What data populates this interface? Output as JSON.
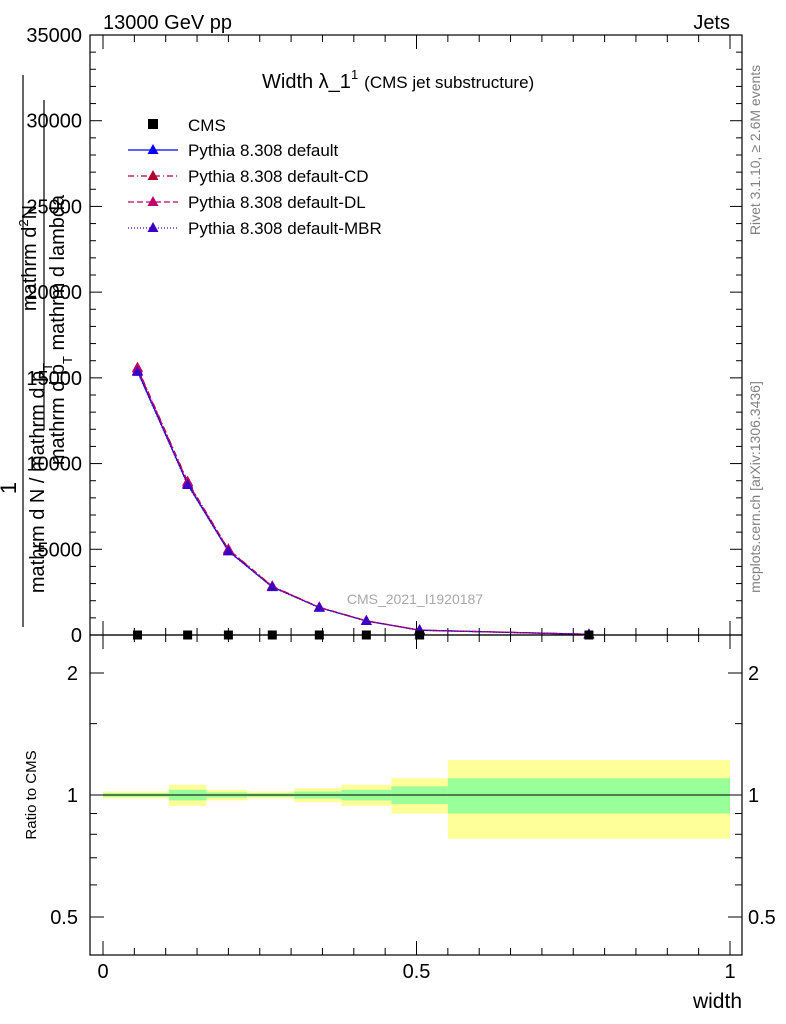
{
  "header": {
    "left": "13000 GeV pp",
    "right": "Jets"
  },
  "side_labels": {
    "rivet": "Rivet 3.1.10, ≥ 2.6M events",
    "mcplots": "mcplots.cern.ch [arXiv:1306.3436]"
  },
  "watermark": "CMS_2021_I1920187",
  "chart_data": [
    {
      "type": "line",
      "title_main": "Width λ_1",
      "title_sup": "1",
      "title_sub": "(CMS jet substructure)",
      "ylabel_num_1": "mathrm d",
      "ylabel_num_sup": "2",
      "ylabel_num_2": "N",
      "ylabel_den": "mathrm d p",
      "ylabel_den_sub": "T",
      "ylabel_den_2": " mathrm d lambda",
      "ylabel_outer_num": "1",
      "ylabel_outer_den_1": "mathrm d N / mathrm d p",
      "ylabel_outer_den_sub": "T",
      "ylim": [
        0,
        35000
      ],
      "xlim": [
        0,
        1
      ],
      "yticks": [
        0,
        5000,
        10000,
        15000,
        20000,
        25000,
        30000,
        35000
      ],
      "ytick_labels": [
        "0",
        "5000",
        "10000",
        "15000",
        "20000",
        "25000",
        "30000",
        "35000"
      ],
      "legend_position": "top-left",
      "cms": {
        "name": "CMS",
        "x": [
          0.055,
          0.135,
          0.2,
          0.27,
          0.345,
          0.42,
          0.505,
          0.775
        ],
        "y": [
          0,
          0,
          0,
          0,
          0,
          0,
          0,
          0
        ]
      },
      "series": [
        {
          "name": "Pythia 8.308 default",
          "color": "#0000ff",
          "dash": "",
          "x": [
            0.055,
            0.135,
            0.2,
            0.27,
            0.345,
            0.42,
            0.505,
            0.775
          ],
          "y": [
            15400,
            8800,
            4900,
            2800,
            1600,
            820,
            280,
            40
          ]
        },
        {
          "name": "Pythia 8.308 default-CD",
          "color": "#b00030",
          "dash": "6,3,1,3",
          "x": [
            0.055,
            0.135,
            0.2,
            0.27,
            0.345,
            0.42,
            0.505,
            0.775
          ],
          "y": [
            15600,
            8950,
            5000,
            2850,
            1620,
            830,
            285,
            40
          ]
        },
        {
          "name": "Pythia 8.308 default-DL",
          "color": "#c0006a",
          "dash": "6,3",
          "x": [
            0.055,
            0.135,
            0.2,
            0.27,
            0.345,
            0.42,
            0.505,
            0.775
          ],
          "y": [
            15550,
            8900,
            4980,
            2830,
            1610,
            825,
            282,
            40
          ]
        },
        {
          "name": "Pythia 8.308 default-MBR",
          "color": "#3a00c8",
          "dash": "1,2",
          "x": [
            0.055,
            0.135,
            0.2,
            0.27,
            0.345,
            0.42,
            0.505,
            0.775
          ],
          "y": [
            15350,
            8750,
            4880,
            2790,
            1590,
            815,
            278,
            40
          ]
        }
      ]
    },
    {
      "type": "area",
      "ylabel": "Ratio to CMS",
      "xlabel": "width",
      "ylim": [
        0.4,
        2.3
      ],
      "yticks": [
        0.5,
        1,
        2
      ],
      "ytick_labels": [
        "0.5",
        "1",
        "2"
      ],
      "xticks": [
        0,
        0.5,
        1
      ],
      "xtick_labels": [
        "0",
        "0.5",
        "1"
      ],
      "bins": [
        {
          "lo": 0.0,
          "hi": 0.105,
          "stat": [
            0.99,
            1.01
          ],
          "tot": [
            0.98,
            1.02
          ]
        },
        {
          "lo": 0.105,
          "hi": 0.165,
          "stat": [
            0.97,
            1.03
          ],
          "tot": [
            0.94,
            1.06
          ]
        },
        {
          "lo": 0.165,
          "hi": 0.23,
          "stat": [
            0.985,
            1.015
          ],
          "tot": [
            0.97,
            1.03
          ]
        },
        {
          "lo": 0.23,
          "hi": 0.305,
          "stat": [
            0.99,
            1.01
          ],
          "tot": [
            0.98,
            1.02
          ]
        },
        {
          "lo": 0.305,
          "hi": 0.38,
          "stat": [
            0.98,
            1.02
          ],
          "tot": [
            0.96,
            1.04
          ]
        },
        {
          "lo": 0.38,
          "hi": 0.46,
          "stat": [
            0.97,
            1.03
          ],
          "tot": [
            0.94,
            1.06
          ]
        },
        {
          "lo": 0.46,
          "hi": 0.55,
          "stat": [
            0.95,
            1.05
          ],
          "tot": [
            0.9,
            1.1
          ]
        },
        {
          "lo": 0.55,
          "hi": 1.0,
          "stat": [
            0.9,
            1.1
          ],
          "tot": [
            0.78,
            1.22
          ]
        }
      ]
    }
  ]
}
